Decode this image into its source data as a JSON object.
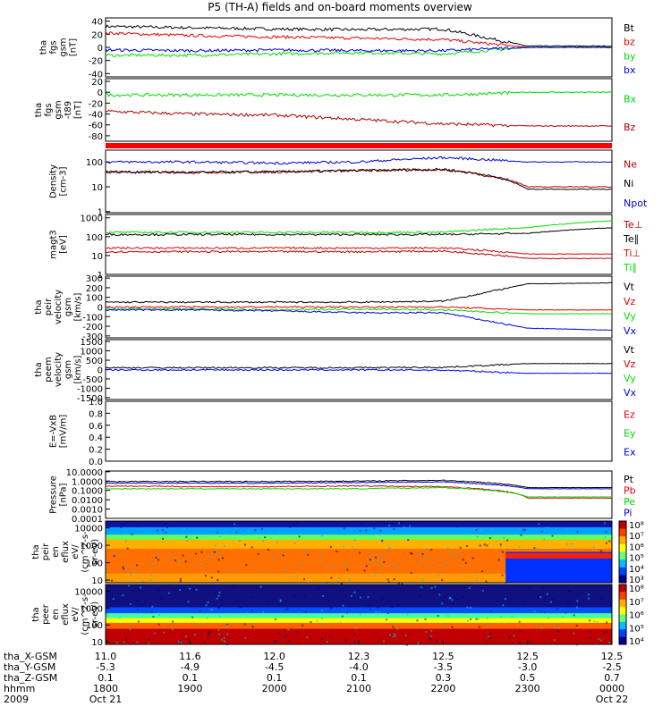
{
  "title": "P5 (TH-A) fields and on-board moments overview",
  "colors": {
    "black": "#000000",
    "red": "#e00000",
    "green": "#00dd00",
    "blue": "#0000e0",
    "darkred": "#b00000"
  },
  "panels": [
    {
      "id": "fgs_gsm",
      "ylabel": [
        "tha",
        "fgs",
        "gsm",
        "[nT]"
      ],
      "ticks": [
        "40",
        "20",
        "0",
        "-20",
        "-40"
      ],
      "ticksV": [
        40,
        20,
        0,
        -20,
        -40
      ],
      "ylim": [
        -45,
        45
      ],
      "legend": [
        {
          "text": "Bt",
          "color": "black"
        },
        {
          "text": "bz",
          "color": "red"
        },
        {
          "text": "by",
          "color": "green"
        },
        {
          "text": "bx",
          "color": "blue"
        }
      ]
    },
    {
      "id": "fgs_gsm_tbp",
      "ylabel": [
        "tha",
        "fgs",
        "gsm",
        "-t89",
        "[nT]"
      ],
      "ticks": [
        "20",
        "0",
        "-20",
        "-40",
        "-60",
        "-80"
      ],
      "ticksV": [
        20,
        0,
        -20,
        -40,
        -60,
        -80
      ],
      "ylim": [
        -90,
        25
      ],
      "legend": [
        {
          "text": "Bx",
          "color": "green"
        },
        {
          "text": "Bz",
          "color": "darkred"
        }
      ]
    },
    {
      "id": "density",
      "ylabel": [
        "Density",
        "[cm-3]"
      ],
      "ticks": [
        "100",
        "10",
        "1"
      ],
      "ticksV": [
        100,
        10,
        1
      ],
      "ylim": [
        0.9,
        300
      ],
      "log": true,
      "legend": [
        {
          "text": "Ne",
          "color": "darkred"
        },
        {
          "text": "Ni",
          "color": "black"
        },
        {
          "text": "Npot",
          "color": "blue"
        }
      ]
    },
    {
      "id": "temp",
      "ylabel": [
        "magt3",
        "[eV]"
      ],
      "ticks": [
        "1000",
        "100",
        "10",
        "1"
      ],
      "ticksV": [
        1000,
        100,
        10,
        1
      ],
      "ylim": [
        1,
        1500
      ],
      "log": true,
      "legend": [
        {
          "text": "Te⊥",
          "color": "darkred"
        },
        {
          "text": "Te∥",
          "color": "black"
        },
        {
          "text": "Ti⊥",
          "color": "red"
        },
        {
          "text": "Ti∥",
          "color": "green"
        }
      ]
    },
    {
      "id": "peir_vel",
      "ylabel": [
        "tha",
        "peir",
        "velocity",
        "gsm",
        "[km/s]"
      ],
      "ticks": [
        "300",
        "200",
        "100",
        "0",
        "-100",
        "-200",
        "-300"
      ],
      "ticksV": [
        300,
        200,
        100,
        0,
        -100,
        -200,
        -300
      ],
      "ylim": [
        -320,
        320
      ],
      "legend": [
        {
          "text": "Vt",
          "color": "black"
        },
        {
          "text": "Vz",
          "color": "red"
        },
        {
          "text": "Vy",
          "color": "green"
        },
        {
          "text": "Vx",
          "color": "blue"
        }
      ]
    },
    {
      "id": "peem_vel",
      "ylabel": [
        "tha",
        "peem",
        "velocity",
        "gsm",
        "[km/s]"
      ],
      "ticks": [
        "1500",
        "1000",
        "500",
        "0",
        "-500",
        "-1000",
        "-1500"
      ],
      "ticksV": [
        1500,
        1000,
        500,
        0,
        -500,
        -1000,
        -1500
      ],
      "ylim": [
        -1600,
        1600
      ],
      "legend": [
        {
          "text": "Vt",
          "color": "black"
        },
        {
          "text": "Vz",
          "color": "red"
        },
        {
          "text": "Vy",
          "color": "green"
        },
        {
          "text": "Vx",
          "color": "blue"
        }
      ]
    },
    {
      "id": "efield",
      "ylabel": [
        "E=-VxB",
        "[mV/m]"
      ],
      "ticks": [
        "1.0",
        "0.8",
        "0.6",
        "0.4",
        "0.2",
        "0.0"
      ],
      "ticksV": [
        1.0,
        0.8,
        0.6,
        0.4,
        0.2,
        0.0
      ],
      "ylim": [
        0,
        1
      ],
      "legend": [
        {
          "text": "Ez",
          "color": "red"
        },
        {
          "text": "Ey",
          "color": "green"
        },
        {
          "text": "Ex",
          "color": "blue"
        }
      ]
    },
    {
      "id": "pressure",
      "ylabel": [
        "Pressure",
        "[nPa]"
      ],
      "ticks": [
        "10.0000",
        "1.0000",
        "0.1000",
        "0.0100",
        "0.0010",
        "0.0001"
      ],
      "ticksV": [
        10,
        1,
        0.1,
        0.01,
        0.001,
        0.0001
      ],
      "ylim": [
        0.0001,
        12
      ],
      "log": true,
      "legend": [
        {
          "text": "Pt",
          "color": "black"
        },
        {
          "text": "Pb",
          "color": "red"
        },
        {
          "text": "Pe",
          "color": "green"
        },
        {
          "text": "Pi",
          "color": "blue"
        }
      ]
    },
    {
      "id": "peir_spec",
      "ylabel": [
        "tha",
        "peir",
        "en",
        "eflux",
        "eV/",
        "(cm^2-s-",
        "sr-eV)"
      ],
      "ticks": [
        "10000",
        "1000",
        "100",
        "10"
      ],
      "ticksV": [
        10000,
        1000,
        100,
        10
      ],
      "ylim": [
        7,
        25000
      ],
      "log": true,
      "colorbar": [
        "10⁸",
        "10⁷",
        "10⁶",
        "10⁵",
        "10⁴",
        "10³"
      ]
    },
    {
      "id": "peer_spec",
      "ylabel": [
        "tha",
        "peer",
        "en",
        "eflux",
        "eV/",
        "(cm^2-s-",
        "sr-eV)"
      ],
      "ticks": [
        "10000",
        "1000",
        "100",
        "10"
      ],
      "ticksV": [
        10000,
        1000,
        100,
        10
      ],
      "ylim": [
        7,
        25000
      ],
      "log": true,
      "colorbar": [
        "10⁸",
        "10⁷",
        "10⁶",
        "10⁵",
        "10⁴"
      ]
    }
  ],
  "xaxis": {
    "row_labels": [
      "tha_X-GSM",
      "tha_Y-GSM",
      "tha_Z-GSM",
      "hhmm",
      "2009"
    ],
    "columns": [
      {
        "values": [
          "11.0",
          "-5.3",
          "0.1",
          "1800",
          "Oct 21"
        ]
      },
      {
        "values": [
          "11.6",
          "-4.9",
          "0.1",
          "1900",
          ""
        ]
      },
      {
        "values": [
          "12.0",
          "-4.5",
          "0.1",
          "2000",
          ""
        ]
      },
      {
        "values": [
          "12.3",
          "-4.0",
          "0.1",
          "2100",
          ""
        ]
      },
      {
        "values": [
          "12.5",
          "-3.5",
          "0.3",
          "2200",
          ""
        ]
      },
      {
        "values": [
          "12.5",
          "-3.0",
          "0.5",
          "2300",
          ""
        ]
      },
      {
        "values": [
          "12.5",
          "-2.5",
          "0.7",
          "0000",
          "Oct 22"
        ]
      }
    ]
  },
  "chart_data": {
    "type": "line",
    "title": "P5 (TH-A) fields and on-board moments overview",
    "x_times": [
      "1800",
      "1900",
      "2000",
      "2100",
      "2200",
      "2300",
      "0000"
    ],
    "series": [
      {
        "panel": "fgs_gsm",
        "name": "Bt",
        "values": [
          32,
          30,
          28,
          27,
          28,
          2,
          2
        ]
      },
      {
        "panel": "fgs_gsm",
        "name": "bz",
        "values": [
          22,
          18,
          16,
          14,
          12,
          0,
          0
        ]
      },
      {
        "panel": "fgs_gsm",
        "name": "by",
        "values": [
          -12,
          -12,
          -10,
          -8,
          -10,
          0,
          0
        ]
      },
      {
        "panel": "fgs_gsm",
        "name": "bx",
        "values": [
          -4,
          -5,
          -4,
          -5,
          -5,
          0,
          0
        ]
      },
      {
        "panel": "fgs_gsm_tbp",
        "name": "Bx",
        "values": [
          -5,
          -5,
          -5,
          -5,
          -5,
          0,
          0
        ]
      },
      {
        "panel": "fgs_gsm_tbp",
        "name": "Bz",
        "values": [
          -35,
          -40,
          -42,
          -50,
          -58,
          -62,
          -62
        ]
      },
      {
        "panel": "density",
        "name": "Ne",
        "values": [
          40,
          38,
          40,
          45,
          50,
          10,
          10
        ]
      },
      {
        "panel": "density",
        "name": "Ni",
        "values": [
          40,
          38,
          40,
          45,
          50,
          8,
          8
        ]
      },
      {
        "panel": "density",
        "name": "Npot",
        "values": [
          100,
          100,
          90,
          100,
          150,
          100,
          100
        ]
      },
      {
        "panel": "temp",
        "name": "Ti∥",
        "values": [
          170,
          170,
          170,
          170,
          170,
          300,
          700
        ]
      },
      {
        "panel": "temp",
        "name": "Te∥",
        "values": [
          130,
          130,
          130,
          130,
          130,
          150,
          300
        ]
      },
      {
        "panel": "temp",
        "name": "Ti⊥",
        "values": [
          25,
          25,
          25,
          25,
          25,
          12,
          12
        ]
      },
      {
        "panel": "temp",
        "name": "Te⊥",
        "values": [
          16,
          16,
          16,
          16,
          17,
          7,
          7
        ]
      },
      {
        "panel": "peir_vel",
        "name": "Vt",
        "values": [
          50,
          50,
          50,
          50,
          60,
          240,
          250
        ]
      },
      {
        "panel": "peir_vel",
        "name": "Vz",
        "values": [
          0,
          0,
          0,
          0,
          0,
          -30,
          -30
        ]
      },
      {
        "panel": "peir_vel",
        "name": "Vy",
        "values": [
          -20,
          -20,
          -30,
          -20,
          -30,
          -70,
          -70
        ]
      },
      {
        "panel": "peir_vel",
        "name": "Vx",
        "values": [
          -30,
          -30,
          -40,
          -60,
          -60,
          -220,
          -240
        ]
      },
      {
        "panel": "peem_vel",
        "name": "Vt",
        "values": [
          100,
          100,
          100,
          100,
          120,
          320,
          320
        ]
      },
      {
        "panel": "peem_vel",
        "name": "Vx",
        "values": [
          -20,
          -20,
          -20,
          -20,
          -30,
          -200,
          -200
        ]
      },
      {
        "panel": "pressure",
        "name": "Pt",
        "values": [
          0.9,
          0.9,
          0.9,
          1.0,
          1.2,
          0.2,
          0.2
        ]
      },
      {
        "panel": "pressure",
        "name": "Pb",
        "values": [
          0.3,
          0.25,
          0.25,
          0.3,
          0.25,
          0.015,
          0.015
        ]
      },
      {
        "panel": "pressure",
        "name": "Pe",
        "values": [
          0.15,
          0.15,
          0.15,
          0.15,
          0.2,
          0.02,
          0.02
        ]
      },
      {
        "panel": "pressure",
        "name": "Pi",
        "values": [
          0.6,
          0.6,
          0.6,
          0.7,
          0.8,
          0.15,
          0.15
        ]
      }
    ]
  }
}
